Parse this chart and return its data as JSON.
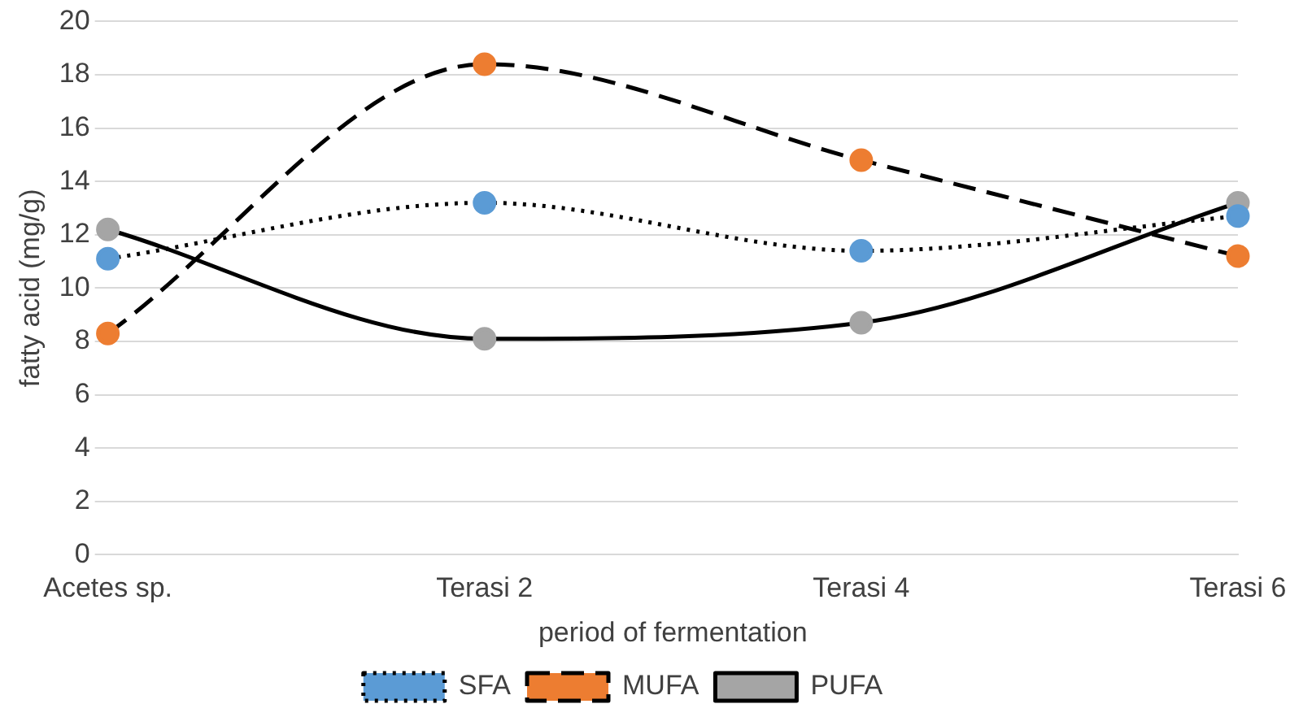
{
  "chart_data": {
    "type": "line",
    "xlabel": "period of fermentation",
    "ylabel": "fatty acid (mg/g)",
    "categories": [
      "Acetes sp.",
      "Terasi 2",
      "Terasi 4",
      "Terasi 6"
    ],
    "series": [
      {
        "name": "SFA",
        "color": "#5b9bd5",
        "values": [
          11.1,
          13.2,
          11.4,
          12.7
        ],
        "line_style": "dotted"
      },
      {
        "name": "MUFA",
        "color": "#ed7d31",
        "values": [
          8.3,
          18.4,
          14.8,
          11.2
        ],
        "line_style": "dashed"
      },
      {
        "name": "PUFA",
        "color": "#a5a5a5",
        "values": [
          12.2,
          8.1,
          8.7,
          13.2
        ],
        "line_style": "solid"
      }
    ],
    "ylim": [
      0,
      20
    ],
    "yticks": [
      0,
      2,
      4,
      6,
      8,
      10,
      12,
      14,
      16,
      18,
      20
    ],
    "grid": "y",
    "legend": "bottom",
    "marker": "circle"
  }
}
